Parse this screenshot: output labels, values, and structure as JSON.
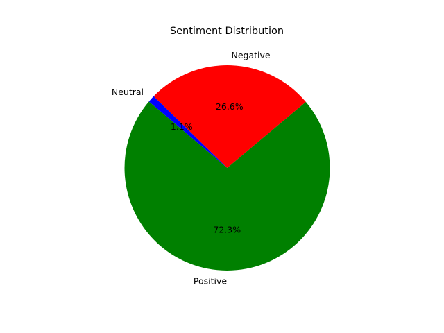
{
  "chart_data": {
    "type": "pie",
    "title": "Sentiment Distribution",
    "slices": [
      {
        "label": "Negative",
        "value": 26.6,
        "pct_label": "26.6%",
        "color": "#ff0000"
      },
      {
        "label": "Neutral",
        "value": 1.1,
        "pct_label": "1.1%",
        "color": "#0000ff"
      },
      {
        "label": "Positive",
        "value": 72.3,
        "pct_label": "72.3%",
        "color": "#008000"
      }
    ],
    "start_angle_deg": 40,
    "direction": "counterclockwise",
    "legend": "none"
  }
}
